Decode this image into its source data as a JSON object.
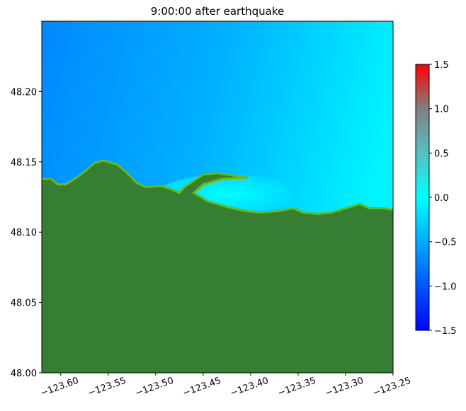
{
  "chart_data": {
    "type": "heatmap",
    "title": "9:00:00 after earthquake",
    "xlabel": "",
    "ylabel": "",
    "xlim": [
      -123.62,
      -123.25
    ],
    "ylim": [
      48.0,
      48.25
    ],
    "x_ticks": [
      -123.6,
      -123.55,
      -123.5,
      -123.45,
      -123.4,
      -123.35,
      -123.3,
      -123.25
    ],
    "x_tick_labels": [
      "−123.60",
      "−123.55",
      "−123.50",
      "−123.45",
      "−123.40",
      "−123.35",
      "−123.30",
      "−123.25"
    ],
    "y_ticks": [
      48.0,
      48.05,
      48.1,
      48.15,
      48.2
    ],
    "y_tick_labels": [
      "48.00",
      "48.05",
      "48.10",
      "48.15",
      "48.20"
    ],
    "colorbar": {
      "range": [
        -1.5,
        1.5
      ],
      "ticks": [
        -1.5,
        -1.0,
        -0.5,
        0.0,
        0.5,
        1.0,
        1.5
      ],
      "tick_labels": [
        "−1.5",
        "−1.0",
        "−0.5",
        "0.0",
        "0.5",
        "1.0",
        "1.5"
      ],
      "stops": [
        {
          "value": -1.5,
          "color": "#0000ff"
        },
        {
          "value": -0.5,
          "color": "#00aaff"
        },
        {
          "value": 0.0,
          "color": "#00ffff"
        },
        {
          "value": 0.5,
          "color": "#55c0c0"
        },
        {
          "value": 1.0,
          "color": "#808080"
        },
        {
          "value": 1.5,
          "color": "#ff0000"
        }
      ]
    },
    "coastline": [
      [
        -123.62,
        48.138
      ],
      [
        -123.61,
        48.138
      ],
      [
        -123.603,
        48.134
      ],
      [
        -123.595,
        48.134
      ],
      [
        -123.585,
        48.138
      ],
      [
        -123.575,
        48.143
      ],
      [
        -123.565,
        48.149
      ],
      [
        -123.555,
        48.151
      ],
      [
        -123.54,
        48.148
      ],
      [
        -123.53,
        48.142
      ],
      [
        -123.52,
        48.135
      ],
      [
        -123.51,
        48.132
      ],
      [
        -123.495,
        48.133
      ],
      [
        -123.485,
        48.131
      ],
      [
        -123.475,
        48.128
      ],
      [
        -123.47,
        48.132
      ],
      [
        -123.45,
        48.141
      ],
      [
        -123.435,
        48.142
      ],
      [
        -123.415,
        48.14
      ],
      [
        -123.403,
        48.139
      ],
      [
        -123.43,
        48.138
      ],
      [
        -123.45,
        48.134
      ],
      [
        -123.46,
        48.128
      ],
      [
        -123.445,
        48.122
      ],
      [
        -123.425,
        48.118
      ],
      [
        -123.405,
        48.115
      ],
      [
        -123.39,
        48.114
      ],
      [
        -123.37,
        48.115
      ],
      [
        -123.355,
        48.117
      ],
      [
        -123.345,
        48.114
      ],
      [
        -123.33,
        48.113
      ],
      [
        -123.315,
        48.114
      ],
      [
        -123.3,
        48.117
      ],
      [
        -123.285,
        48.12
      ],
      [
        -123.275,
        48.117
      ],
      [
        -123.26,
        48.117
      ],
      [
        -123.25,
        48.116
      ]
    ],
    "colors": {
      "deep_water": "#0090ff",
      "shallow_water": "#00e8ff",
      "land": "#367e33",
      "shore": "#76b800"
    }
  }
}
